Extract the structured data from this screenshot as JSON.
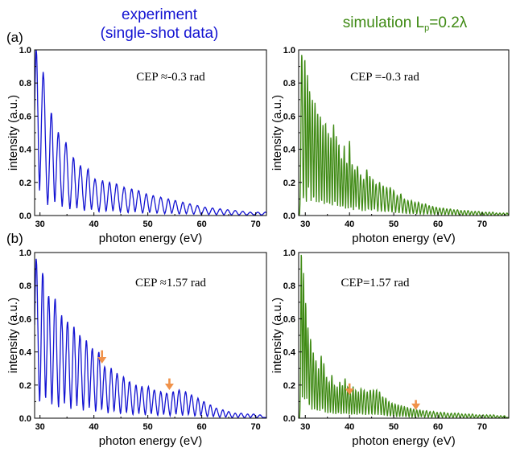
{
  "header": {
    "experiment_line1": "experiment",
    "experiment_line2": "(single-shot data)",
    "simulation_pre": "simulation L",
    "simulation_sub": "p",
    "simulation_post": "=0.2λ",
    "experiment_color": "#1414d2",
    "simulation_color": "#3f8a14"
  },
  "arrow_color": "#f0924a",
  "chart_data": [
    {
      "id": "exp-a",
      "type": "line",
      "panel_label": "(a)",
      "annotation": "CEP ≈-0.3 rad",
      "xlabel": "photon energy (eV)",
      "ylabel": "intensity (a.u.)",
      "xlim": [
        29,
        72
      ],
      "ylim": [
        0,
        1.0
      ],
      "xticks": [
        30,
        40,
        50,
        60,
        70
      ],
      "yticks": [
        0.0,
        0.2,
        0.4,
        0.6,
        0.8,
        1.0
      ],
      "color": "#1414d2",
      "peaks": [
        [
          29.3,
          1.0
        ],
        [
          30.6,
          0.86
        ],
        [
          32.1,
          0.62
        ],
        [
          33.4,
          0.5
        ],
        [
          34.8,
          0.44
        ],
        [
          36.2,
          0.35
        ],
        [
          37.5,
          0.3
        ],
        [
          38.9,
          0.28
        ],
        [
          40.2,
          0.22
        ],
        [
          41.6,
          0.21
        ],
        [
          42.9,
          0.2
        ],
        [
          44.2,
          0.19
        ],
        [
          45.6,
          0.17
        ],
        [
          47.0,
          0.16
        ],
        [
          48.3,
          0.15
        ],
        [
          49.7,
          0.13
        ],
        [
          51.0,
          0.12
        ],
        [
          52.4,
          0.11
        ],
        [
          53.8,
          0.1
        ],
        [
          55.1,
          0.09
        ],
        [
          56.5,
          0.08
        ],
        [
          57.8,
          0.07
        ],
        [
          59.2,
          0.06
        ],
        [
          60.6,
          0.05
        ],
        [
          62.0,
          0.045
        ],
        [
          63.4,
          0.04
        ],
        [
          64.8,
          0.035
        ],
        [
          66.2,
          0.03
        ],
        [
          67.6,
          0.025
        ],
        [
          69.0,
          0.02
        ],
        [
          70.4,
          0.02
        ],
        [
          71.8,
          0.02
        ]
      ],
      "arrows": []
    },
    {
      "id": "sim-a",
      "type": "line",
      "panel_label": "",
      "annotation": "CEP =-0.3 rad",
      "xlabel": "photon energy (eV)",
      "ylabel": "intensity (a.u.)",
      "xlim": [
        28.5,
        76
      ],
      "ylim": [
        0,
        1.0
      ],
      "xticks": [
        30,
        40,
        50,
        60,
        70
      ],
      "yticks": [
        0.0,
        0.2,
        0.4,
        0.6,
        0.8,
        1.0
      ],
      "color": "#3f8a14",
      "peaks": [
        [
          29.2,
          0.98
        ],
        [
          29.9,
          0.95
        ],
        [
          30.5,
          0.85
        ],
        [
          31.0,
          0.75
        ],
        [
          31.6,
          0.7
        ],
        [
          32.2,
          0.68
        ],
        [
          32.8,
          0.62
        ],
        [
          33.4,
          0.6
        ],
        [
          34.0,
          0.55
        ],
        [
          34.6,
          0.56
        ],
        [
          35.2,
          0.5
        ],
        [
          35.8,
          0.47
        ],
        [
          36.4,
          0.55
        ],
        [
          37.0,
          0.48
        ],
        [
          37.6,
          0.43
        ],
        [
          38.2,
          0.35
        ],
        [
          38.8,
          0.42
        ],
        [
          39.4,
          0.32
        ],
        [
          40.0,
          0.45
        ],
        [
          40.6,
          0.31
        ],
        [
          41.2,
          0.28
        ],
        [
          41.8,
          0.3
        ],
        [
          42.5,
          0.25
        ],
        [
          43.2,
          0.22
        ],
        [
          43.9,
          0.28
        ],
        [
          44.6,
          0.24
        ],
        [
          45.3,
          0.22
        ],
        [
          46.0,
          0.19
        ],
        [
          46.8,
          0.2
        ],
        [
          47.6,
          0.18
        ],
        [
          48.4,
          0.17
        ],
        [
          49.2,
          0.17
        ],
        [
          50.0,
          0.15
        ],
        [
          50.8,
          0.12
        ],
        [
          51.6,
          0.13
        ],
        [
          52.4,
          0.1
        ],
        [
          53.2,
          0.09
        ],
        [
          54.0,
          0.09
        ],
        [
          54.8,
          0.08
        ],
        [
          55.6,
          0.08
        ],
        [
          56.4,
          0.07
        ],
        [
          57.2,
          0.07
        ],
        [
          58.0,
          0.06
        ],
        [
          58.8,
          0.055
        ],
        [
          59.6,
          0.05
        ],
        [
          60.4,
          0.045
        ],
        [
          61.2,
          0.045
        ],
        [
          62.0,
          0.04
        ],
        [
          62.8,
          0.04
        ],
        [
          63.6,
          0.035
        ],
        [
          64.4,
          0.035
        ],
        [
          65.2,
          0.03
        ],
        [
          66.0,
          0.03
        ],
        [
          66.8,
          0.03
        ],
        [
          67.6,
          0.025
        ],
        [
          68.4,
          0.025
        ],
        [
          69.2,
          0.025
        ],
        [
          70.0,
          0.02
        ],
        [
          70.8,
          0.02
        ],
        [
          71.6,
          0.02
        ],
        [
          72.4,
          0.02
        ],
        [
          73.2,
          0.015
        ],
        [
          74.0,
          0.015
        ],
        [
          74.8,
          0.015
        ],
        [
          75.6,
          0.015
        ]
      ],
      "arrows": []
    },
    {
      "id": "exp-b",
      "type": "line",
      "panel_label": "(b)",
      "annotation": "CEP ≈1.57 rad",
      "xlabel": "photon energy (eV)",
      "ylabel": "intensity (a.u.)",
      "xlim": [
        29,
        72
      ],
      "ylim": [
        0,
        1.0
      ],
      "xticks": [
        30,
        40,
        50,
        60,
        70
      ],
      "yticks": [
        0.0,
        0.2,
        0.4,
        0.6,
        0.8,
        1.0
      ],
      "color": "#1414d2",
      "peaks": [
        [
          29.3,
          0.96
        ],
        [
          30.5,
          0.88
        ],
        [
          31.6,
          0.74
        ],
        [
          32.8,
          0.72
        ],
        [
          34.0,
          0.62
        ],
        [
          35.1,
          0.58
        ],
        [
          36.3,
          0.55
        ],
        [
          37.4,
          0.5
        ],
        [
          38.6,
          0.47
        ],
        [
          39.7,
          0.42
        ],
        [
          40.9,
          0.4
        ],
        [
          42.0,
          0.31
        ],
        [
          43.2,
          0.3
        ],
        [
          44.3,
          0.27
        ],
        [
          45.5,
          0.25
        ],
        [
          46.6,
          0.22
        ],
        [
          47.8,
          0.2
        ],
        [
          48.9,
          0.19
        ],
        [
          50.1,
          0.19
        ],
        [
          51.2,
          0.17
        ],
        [
          52.4,
          0.16
        ],
        [
          53.5,
          0.15
        ],
        [
          54.7,
          0.16
        ],
        [
          55.8,
          0.17
        ],
        [
          57.0,
          0.16
        ],
        [
          58.1,
          0.14
        ],
        [
          59.3,
          0.12
        ],
        [
          60.4,
          0.1
        ],
        [
          61.6,
          0.08
        ],
        [
          62.7,
          0.06
        ],
        [
          63.9,
          0.05
        ],
        [
          65.0,
          0.04
        ],
        [
          66.2,
          0.03
        ],
        [
          67.3,
          0.03
        ],
        [
          68.5,
          0.025
        ],
        [
          69.6,
          0.025
        ],
        [
          70.8,
          0.02
        ]
      ],
      "arrows": [
        [
          41.5,
          0.41,
          0.33
        ],
        [
          54.0,
          0.24,
          0.17
        ]
      ]
    },
    {
      "id": "sim-b",
      "type": "line",
      "panel_label": "",
      "annotation": "CEP=1.57 rad",
      "xlabel": "photon energy (eV)",
      "ylabel": "intensity (a.u.)",
      "xlim": [
        28.5,
        76
      ],
      "ylim": [
        0,
        1.0
      ],
      "xticks": [
        30,
        40,
        50,
        60,
        70
      ],
      "yticks": [
        0.0,
        0.2,
        0.4,
        0.6,
        0.8,
        1.0
      ],
      "color": "#3f8a14",
      "peaks": [
        [
          29.1,
          1.0
        ],
        [
          29.6,
          0.88
        ],
        [
          30.1,
          0.7
        ],
        [
          30.6,
          0.55
        ],
        [
          31.2,
          0.48
        ],
        [
          31.8,
          0.4
        ],
        [
          32.4,
          0.35
        ],
        [
          33.0,
          0.3
        ],
        [
          33.6,
          0.38
        ],
        [
          34.2,
          0.33
        ],
        [
          34.8,
          0.25
        ],
        [
          35.4,
          0.22
        ],
        [
          36.0,
          0.26
        ],
        [
          36.6,
          0.2
        ],
        [
          37.2,
          0.19
        ],
        [
          37.8,
          0.22
        ],
        [
          38.4,
          0.2
        ],
        [
          39.0,
          0.24
        ],
        [
          39.6,
          0.19
        ],
        [
          40.2,
          0.15
        ],
        [
          40.8,
          0.19
        ],
        [
          41.4,
          0.17
        ],
        [
          42.0,
          0.16
        ],
        [
          42.6,
          0.18
        ],
        [
          43.3,
          0.17
        ],
        [
          44.0,
          0.16
        ],
        [
          44.7,
          0.17
        ],
        [
          45.4,
          0.17
        ],
        [
          46.1,
          0.17
        ],
        [
          46.8,
          0.16
        ],
        [
          47.5,
          0.13
        ],
        [
          48.2,
          0.12
        ],
        [
          48.9,
          0.1
        ],
        [
          49.6,
          0.09
        ],
        [
          50.3,
          0.085
        ],
        [
          51.0,
          0.08
        ],
        [
          51.7,
          0.075
        ],
        [
          52.4,
          0.07
        ],
        [
          53.1,
          0.065
        ],
        [
          53.8,
          0.06
        ],
        [
          54.5,
          0.055
        ],
        [
          55.2,
          0.05
        ],
        [
          55.9,
          0.05
        ],
        [
          56.6,
          0.045
        ],
        [
          57.4,
          0.045
        ],
        [
          58.2,
          0.04
        ],
        [
          59.0,
          0.04
        ],
        [
          59.8,
          0.035
        ],
        [
          60.6,
          0.035
        ],
        [
          61.4,
          0.035
        ],
        [
          62.2,
          0.03
        ],
        [
          63.0,
          0.03
        ],
        [
          63.8,
          0.03
        ],
        [
          64.6,
          0.03
        ],
        [
          65.4,
          0.025
        ],
        [
          66.2,
          0.025
        ],
        [
          67.0,
          0.025
        ],
        [
          67.8,
          0.025
        ],
        [
          68.6,
          0.02
        ],
        [
          69.4,
          0.02
        ],
        [
          70.2,
          0.02
        ],
        [
          71.0,
          0.02
        ],
        [
          71.8,
          0.02
        ],
        [
          72.6,
          0.02
        ],
        [
          73.4,
          0.015
        ],
        [
          74.2,
          0.015
        ],
        [
          75.0,
          0.015
        ]
      ],
      "arrows": [
        [
          40.0,
          0.21,
          0.14
        ],
        [
          55.0,
          0.11,
          0.05
        ]
      ]
    }
  ]
}
